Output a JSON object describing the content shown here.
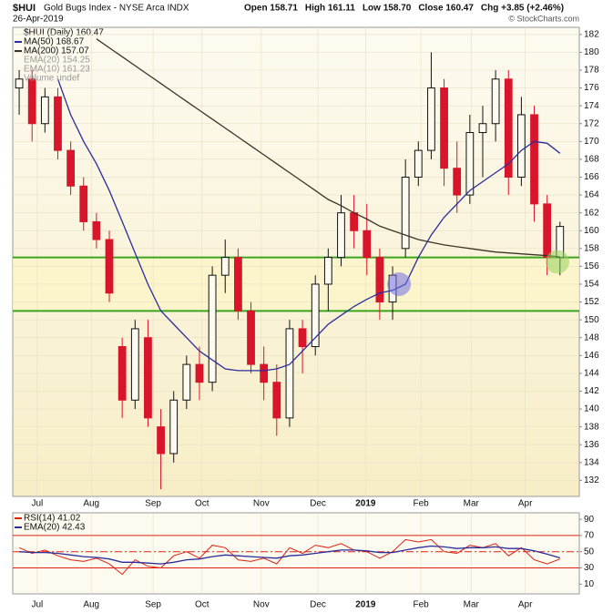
{
  "chart_data": {
    "type": "candlestick",
    "title": "$HUI",
    "subtitle": "Gold Bugs Index - NYSE Arca INDX",
    "date": "26-Apr-2019",
    "quote": [
      "Open 158.71",
      "High 161.11",
      "Low 158.70",
      "Close 160.47",
      "Chg +3.85 (+2.46%)"
    ],
    "credit": "© StockCharts.com",
    "legend_title": "$HUI (Daily) 160.47",
    "open": [
      176,
      177,
      172,
      175,
      169,
      165,
      161,
      159,
      147,
      141,
      148,
      138,
      135,
      141,
      145,
      143,
      155,
      157,
      151,
      145,
      143,
      139,
      149,
      147,
      154,
      157,
      162,
      160,
      157,
      152,
      158,
      166,
      169,
      176,
      167,
      164,
      171,
      172,
      177,
      166,
      173,
      163,
      157
    ],
    "high": [
      178,
      178,
      176,
      176,
      170,
      166,
      162,
      160,
      148,
      150,
      150,
      140,
      142,
      146,
      147,
      156,
      159,
      158,
      152,
      147,
      145,
      150,
      150,
      155,
      158,
      164,
      164,
      163,
      158,
      156,
      168,
      170,
      180,
      177,
      170,
      173,
      174,
      178,
      178,
      175,
      174,
      164,
      161
    ],
    "low": [
      173,
      170,
      171,
      168,
      164,
      160,
      158,
      152,
      139,
      140,
      138,
      131,
      134,
      140,
      141,
      142,
      153,
      150,
      144,
      141,
      137,
      138,
      144,
      146,
      151,
      156,
      158,
      155,
      150,
      150,
      157,
      165,
      168,
      165,
      162,
      163,
      166,
      170,
      164,
      165,
      161,
      155,
      155
    ],
    "close": [
      177,
      172,
      175,
      169,
      165,
      161,
      159,
      153,
      141,
      149,
      139,
      135,
      141,
      145,
      143,
      155,
      157,
      151,
      145,
      143,
      139,
      149,
      147,
      154,
      157,
      162,
      160,
      157,
      152,
      155,
      166,
      169,
      176,
      167,
      164,
      171,
      172,
      177,
      166,
      173,
      163,
      157,
      160.47
    ],
    "series": [
      {
        "name": "MA(50) 168.67",
        "color": "#2b2d9c",
        "values": [
          null,
          null,
          null,
          177,
          173,
          170,
          167.5,
          164.5,
          161,
          157.5,
          154,
          151,
          149.5,
          148,
          146.5,
          145.5,
          144.5,
          144.3,
          144.3,
          144.3,
          144.5,
          145,
          146.5,
          148,
          149.5,
          150.5,
          151.5,
          152.3,
          153,
          153.3,
          154,
          157,
          159.5,
          161.5,
          163,
          164.5,
          165.5,
          166.5,
          167.5,
          169,
          170,
          169.8,
          168.67
        ]
      },
      {
        "name": "MA(200) 157.07",
        "color": "#3b3326",
        "values": [
          null,
          null,
          null,
          null,
          null,
          null,
          181.5,
          180.5,
          179.5,
          178.5,
          177.5,
          176.5,
          175.5,
          174.5,
          173.5,
          172.5,
          171.5,
          170.5,
          169.5,
          168.5,
          167.5,
          166.5,
          165.5,
          164.5,
          163.5,
          162.8,
          162,
          161.3,
          160.5,
          160,
          159.5,
          159,
          158.7,
          158.4,
          158.2,
          158,
          157.8,
          157.6,
          157.5,
          157.4,
          157.3,
          157.2,
          157.07
        ]
      }
    ],
    "legend_extra": [
      "EMA(20) 154.25",
      "EMA(10) 161.23",
      "Volume undef"
    ],
    "up_color": "#111111",
    "down_color": "#d8152a",
    "xlim": [
      -0.5,
      43.5
    ],
    "ylim": [
      130.2,
      182.8
    ],
    "yticks": [
      132,
      134,
      136,
      138,
      140,
      142,
      144,
      146,
      148,
      150,
      152,
      154,
      156,
      158,
      160,
      162,
      164,
      166,
      168,
      170,
      172,
      174,
      176,
      178,
      180,
      182
    ],
    "xticks": [
      {
        "value": 1.4,
        "label": "Jul"
      },
      {
        "value": 5.6,
        "label": "Aug"
      },
      {
        "value": 10.4,
        "label": "Sep"
      },
      {
        "value": 14.2,
        "label": "Oct"
      },
      {
        "value": 18.8,
        "label": "Nov"
      },
      {
        "value": 23.2,
        "label": "Dec"
      },
      {
        "value": 26.9,
        "label": "2019"
      },
      {
        "value": 31.2,
        "label": "Feb"
      },
      {
        "value": 35.1,
        "label": "Mar"
      },
      {
        "value": 39.3,
        "label": "Apr"
      }
    ],
    "grid": true,
    "support_lines": {
      "values": [
        157,
        151
      ],
      "color": "#3aa61c"
    },
    "highlights": [
      {
        "x": 29.5,
        "y": 154,
        "color": "rgba(110,110,230,0.55)"
      },
      {
        "x": 41.8,
        "y": 156.5,
        "color": "rgba(150,210,90,0.55)"
      }
    ],
    "rsi": {
      "series": [
        {
          "name": "RSI(14) 41.02",
          "color": "#e02010",
          "values": [
            55,
            48,
            52,
            45,
            40,
            38,
            42,
            35,
            22,
            40,
            32,
            30,
            45,
            50,
            42,
            58,
            55,
            40,
            38,
            42,
            35,
            55,
            48,
            58,
            55,
            60,
            52,
            50,
            42,
            50,
            65,
            62,
            65,
            50,
            48,
            58,
            55,
            60,
            45,
            55,
            40,
            35,
            41.02
          ]
        },
        {
          "name": "EMA(20) 42.43",
          "color": "#2b2d9c",
          "values": [
            50,
            49,
            49,
            48,
            46,
            44,
            43,
            41,
            37,
            37,
            36,
            35,
            37,
            40,
            41,
            44,
            46,
            45,
            44,
            43,
            42,
            45,
            46,
            48,
            50,
            52,
            52,
            51,
            49,
            49,
            52,
            55,
            57,
            56,
            54,
            55,
            55,
            56,
            54,
            54,
            51,
            47,
            42.43
          ]
        }
      ],
      "ylim": [
        -2,
        98
      ],
      "yticks": [
        90,
        70,
        50,
        30,
        10
      ],
      "levels": [
        70,
        50,
        30
      ],
      "level_color": "#e02010"
    }
  }
}
